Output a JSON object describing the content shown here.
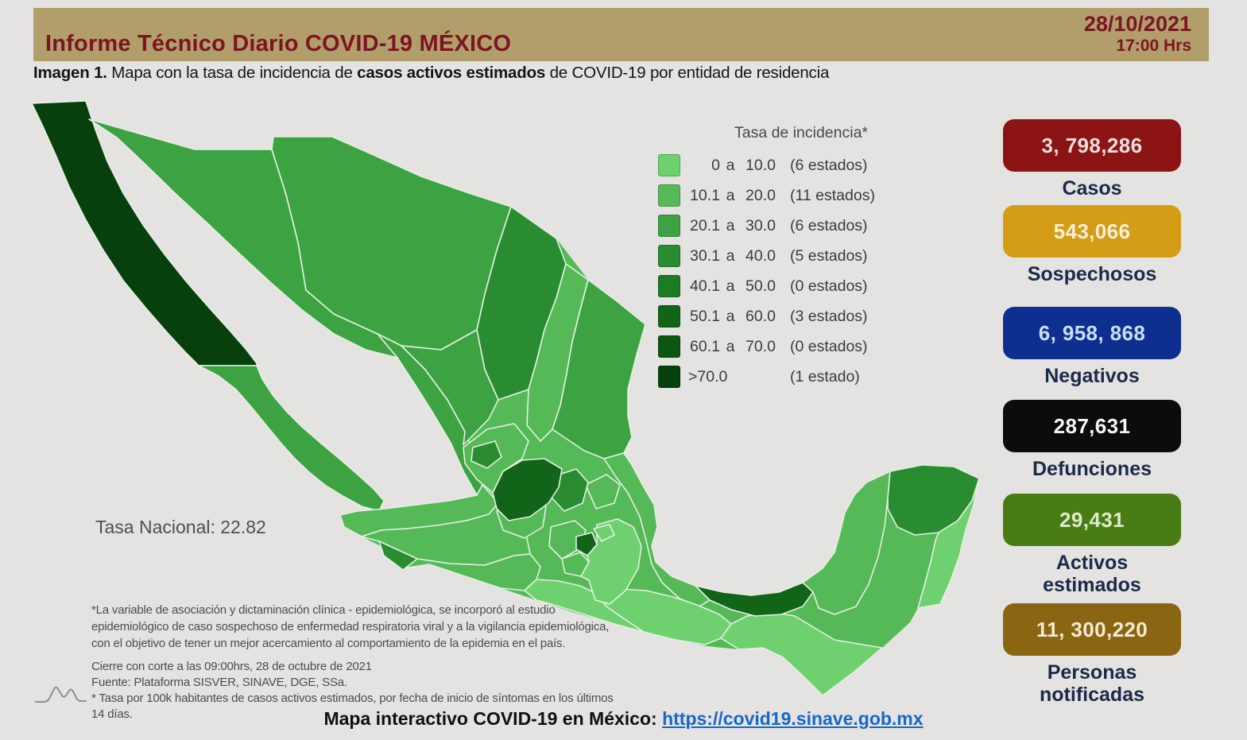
{
  "colors": {
    "background": "#e5e3e1",
    "band": "#b29e6a",
    "maroon": "#7b1523",
    "navy": "#1b2a4a",
    "link": "#1668cc",
    "note_gray": "#4c4c4c",
    "map_border": "#e2f0e2"
  },
  "header": {
    "title": "Informe Técnico Diario COVID-19 MÉXICO",
    "date": "28/10/2021",
    "time": "17:00 Hrs"
  },
  "subtitle": {
    "prefix": "Imagen 1.",
    "before_bold": " Mapa con la tasa de incidencia de ",
    "bold": "casos activos estimados",
    "after_bold": " de COVID-19 por entidad de residencia"
  },
  "legend": {
    "title": "Tasa de incidencia*",
    "rows": [
      {
        "min": "0",
        "sep": "a",
        "max": "10.0",
        "count": "(6 estados)",
        "color": "#6fd06f"
      },
      {
        "min": "10.1",
        "sep": "a",
        "max": "20.0",
        "count": "(11 estados)",
        "color": "#55b957"
      },
      {
        "min": "20.1",
        "sep": "a",
        "max": "30.0",
        "count": "(6 estados)",
        "color": "#3da342"
      },
      {
        "min": "30.1",
        "sep": "a",
        "max": "40.0",
        "count": "(5 estados)",
        "color": "#2a8c30"
      },
      {
        "min": "40.1",
        "sep": "a",
        "max": "50.0",
        "count": "(0 estados)",
        "color": "#1d7b26"
      },
      {
        "min": "50.1",
        "sep": "a",
        "max": "60.0",
        "count": "(3 estados)",
        "color": "#126419"
      },
      {
        "min": "60.1",
        "sep": "a",
        "max": "70.0",
        "count": "(0 estados)",
        "color": "#0c5513"
      },
      {
        "min": ">70.0",
        "sep": "",
        "max": "",
        "count": "(1 estado)",
        "color": "#073f0d"
      }
    ]
  },
  "map": {
    "national_rate_label": "Tasa Nacional:",
    "national_rate_value": "22.82",
    "palette": {
      "c1": "#6fd06f",
      "c2": "#55b957",
      "c3": "#3da342",
      "c4": "#2a8c30",
      "c5": "#1d7b26",
      "c6": "#126419",
      "c7": "#0c5513",
      "c8": "#073f0d"
    }
  },
  "stats": [
    {
      "value": "3, 798,286",
      "label": "Casos",
      "box_color": "#8c1414",
      "value_color": "#efdcdc"
    },
    {
      "value": "543,066",
      "label": "Sospechosos",
      "box_color": "#d59d15",
      "value_color": "#f7efda"
    },
    {
      "value": "6, 958, 868",
      "label": "Negativos",
      "box_color": "#0f2f90",
      "value_color": "#c9dff2"
    },
    {
      "value": "287,631",
      "label": "Defunciones",
      "box_color": "#0c0c0c",
      "value_color": "#f5f5f5"
    },
    {
      "value": "29,431",
      "label": "Activos\nestimados",
      "box_color": "#4a7c15",
      "value_color": "#dcebc8"
    },
    {
      "value": "11, 300,220",
      "label": "Personas\nnotificadas",
      "box_color": "#8a6512",
      "value_color": "#f3ecd2"
    }
  ],
  "notes": {
    "methodology": "*La variable de asociación y dictaminación clínica - epidemiológica, se incorporó al estudio\nepidemiológico de caso sospechoso de enfermedad respiratoria viral y a la vigilancia epidemiológica,\ncon el objetivo de tener un mejor acercamiento al comportamiento de la epidemia en el país.",
    "source": "Cierre con corte a las 09:00hrs, 28 de octubre de 2021\nFuente: Plataforma SISVER, SINAVE, DGE, SSa.\n* Tasa por 100k habitantes de casos activos estimados, por fecha de inicio de síntomas en los últimos 14 días."
  },
  "footer": {
    "label": "Mapa interactivo COVID-19 en México: ",
    "url": "https://covid19.sinave.gob.mx"
  },
  "chart_data": {
    "type": "choropleth",
    "title": "Tasa de incidencia de casos activos estimados de COVID-19 por entidad de residencia",
    "unit": "casos activos estimados por 100k habitantes, últimos 14 días",
    "national_rate": 22.82,
    "bins": [
      {
        "range": "0 a 10.0",
        "states": 6
      },
      {
        "range": "10.1 a 20.0",
        "states": 11
      },
      {
        "range": "20.1 a 30.0",
        "states": 6
      },
      {
        "range": "30.1 a 40.0",
        "states": 5
      },
      {
        "range": "40.1 a 50.0",
        "states": 0
      },
      {
        "range": "50.1 a 60.0",
        "states": 3
      },
      {
        "range": "60.1 a 70.0",
        "states": 0
      },
      {
        "range": ">70.0",
        "states": 1
      }
    ],
    "totals": {
      "casos": "3,798,286",
      "sospechosos": "543,066",
      "negativos": "6,958,868",
      "defunciones": "287,631",
      "activos_estimados": "29,431",
      "personas_notificadas": "11,300,220"
    }
  }
}
